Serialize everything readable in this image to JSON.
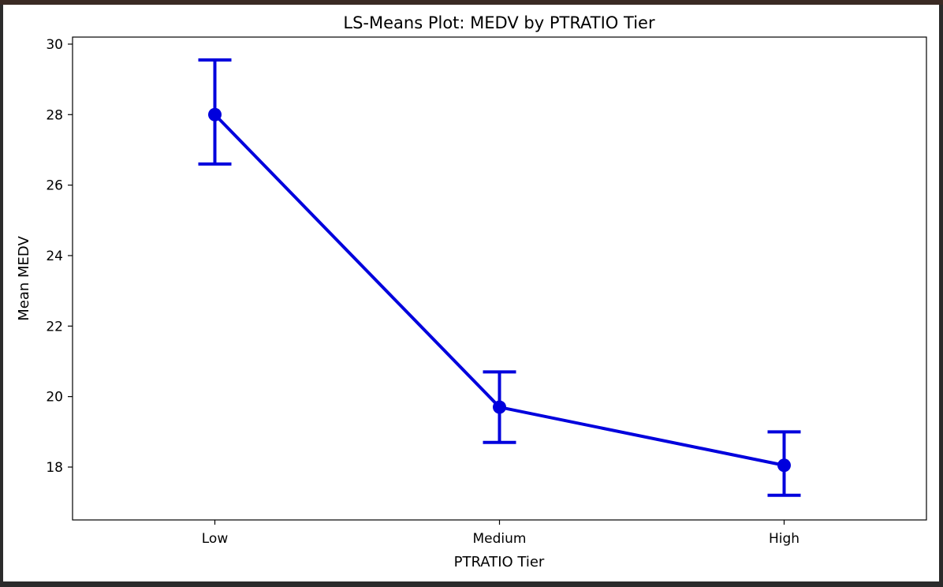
{
  "chart_data": {
    "type": "line",
    "title": "LS-Means Plot: MEDV by PTRATIO Tier",
    "xlabel": "PTRATIO Tier",
    "ylabel": "Mean MEDV",
    "categories": [
      "Low",
      "Medium",
      "High"
    ],
    "series": [
      {
        "values": [
          28.0,
          19.7,
          18.05
        ],
        "error_low": [
          26.6,
          18.7,
          17.2
        ],
        "error_high": [
          29.55,
          20.7,
          19.0
        ]
      }
    ],
    "ylim": [
      16.5,
      30.2
    ],
    "yticks": [
      18,
      20,
      22,
      24,
      26,
      28,
      30
    ],
    "grid": false,
    "color": "#0000dd"
  }
}
